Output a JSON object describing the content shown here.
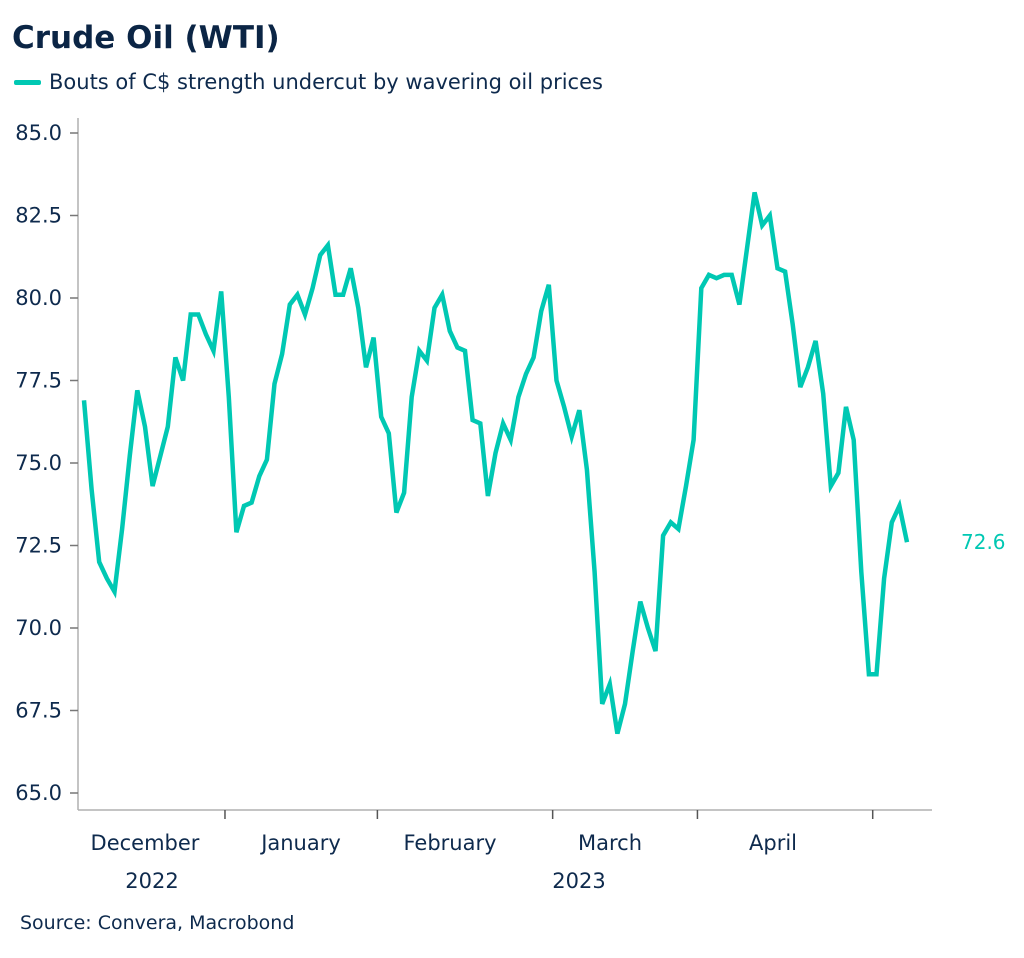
{
  "title": "Crude Oil (WTI)",
  "source": "Source: Convera, Macrobond",
  "colors": {
    "series": "#00c8b3",
    "text": "#0e2a4d",
    "axis": "#b0b0b0"
  },
  "chart_data": {
    "type": "line",
    "title": "Crude Oil (WTI)",
    "xlabel": "",
    "ylabel": "",
    "ylim": [
      65.0,
      85.0
    ],
    "yticks": [
      "65.0",
      "67.5",
      "70.0",
      "72.5",
      "75.0",
      "77.5",
      "80.0",
      "82.5",
      "85.0"
    ],
    "xtick_labels": [
      "December",
      "January",
      "February",
      "March",
      "April"
    ],
    "year_labels": [
      "2022",
      "2023"
    ],
    "grid": false,
    "legend": "top-left",
    "last_value_label": "72.6",
    "series": [
      {
        "name": "Bouts of C$ strength undercut by wavering oil prices",
        "values": [
          76.9,
          74.2,
          72.0,
          71.5,
          71.1,
          73.0,
          75.2,
          77.2,
          76.1,
          74.3,
          75.2,
          76.1,
          78.2,
          77.5,
          79.5,
          79.5,
          78.9,
          78.4,
          80.2,
          77.0,
          72.9,
          73.7,
          73.8,
          74.6,
          75.1,
          77.4,
          78.3,
          79.8,
          80.1,
          79.5,
          80.3,
          81.3,
          81.6,
          80.1,
          80.1,
          80.9,
          79.7,
          77.9,
          78.8,
          76.4,
          75.9,
          73.5,
          74.1,
          77.0,
          78.4,
          78.1,
          79.7,
          80.1,
          79.0,
          78.5,
          78.4,
          76.3,
          76.2,
          74.0,
          75.3,
          76.2,
          75.7,
          77.0,
          77.7,
          78.2,
          79.6,
          80.4,
          77.5,
          76.7,
          75.8,
          76.6,
          74.8,
          71.7,
          67.7,
          68.3,
          66.8,
          67.7,
          69.3,
          70.8,
          70.0,
          69.3,
          72.8,
          73.2,
          73.0,
          74.3,
          75.7,
          80.3,
          80.7,
          80.6,
          80.7,
          80.7,
          79.8,
          81.5,
          83.2,
          82.2,
          82.5,
          80.9,
          80.8,
          79.2,
          77.3,
          77.9,
          78.7,
          77.1,
          74.3,
          74.7,
          76.7,
          75.7,
          71.7,
          68.6,
          68.6,
          71.5,
          73.2,
          73.7,
          72.6
        ]
      }
    ]
  }
}
